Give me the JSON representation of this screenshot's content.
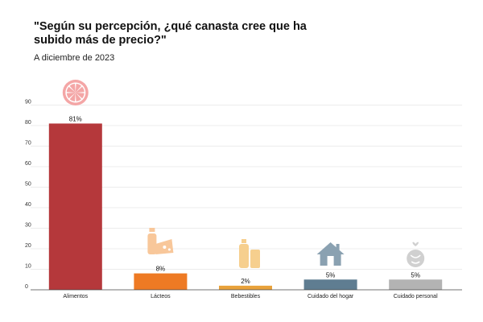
{
  "header": {
    "title": "\"Según su percepción, ¿qué canasta cree que ha subido más de precio?\"",
    "subtitle": "A diciembre de 2023"
  },
  "chart_data": {
    "type": "bar",
    "title": "\"Según su percepción, ¿qué canasta cree que ha subido más de precio?\"",
    "subtitle": "A diciembre de 2023",
    "categories": [
      "Alimentos",
      "Lácteos",
      "Bebestibles",
      "Cuidado del hogar",
      "Cuidado personal"
    ],
    "values": [
      81,
      8,
      2,
      5,
      5
    ],
    "data_labels": [
      "81%",
      "8%",
      "2%",
      "5%",
      "5%"
    ],
    "colors": [
      "#b5383b",
      "#ee7a24",
      "#e9a23b",
      "#5f7d91",
      "#b3b3b3"
    ],
    "icons": [
      "grapefruit-icon",
      "dairy-icon",
      "bottles-icon",
      "house-icon",
      "personal-care-icon"
    ],
    "yticks": [
      0,
      10,
      20,
      30,
      40,
      50,
      60,
      70,
      80,
      90
    ],
    "ylim": [
      0,
      90
    ],
    "xlabel": "",
    "ylabel": "",
    "grid": true,
    "legend": "none"
  }
}
